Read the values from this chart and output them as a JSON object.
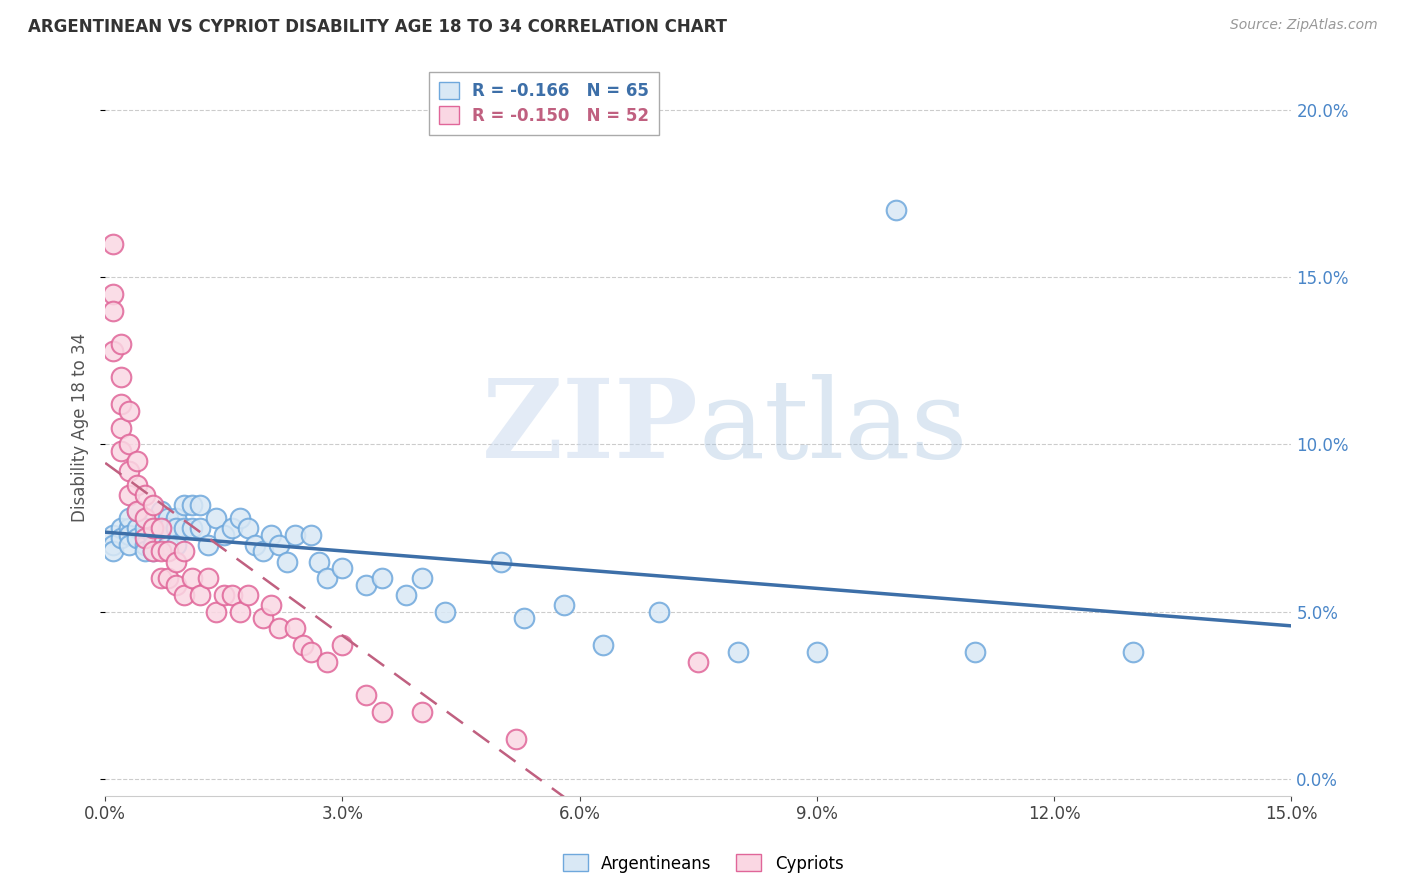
{
  "title": "ARGENTINEAN VS CYPRIOT DISABILITY AGE 18 TO 34 CORRELATION CHART",
  "source": "Source: ZipAtlas.com",
  "ylabel": "Disability Age 18 to 34",
  "xlim": [
    0.0,
    0.15
  ],
  "ylim": [
    -0.005,
    0.215
  ],
  "xticks": [
    0.0,
    0.03,
    0.06,
    0.09,
    0.12,
    0.15
  ],
  "yticks_right": [
    0.0,
    0.05,
    0.1,
    0.15,
    0.2
  ],
  "argentinean_R": -0.166,
  "argentinean_N": 65,
  "cypriot_R": -0.15,
  "cypriot_N": 52,
  "blue_color": "#6fa8dc",
  "pink_color": "#e06699",
  "blue_fill": "#d9e8f5",
  "pink_fill": "#fad7e3",
  "blue_line_color": "#3d6fa8",
  "pink_line_color": "#c06080",
  "watermark_color": "#d0dff0",
  "background_color": "#ffffff",
  "grid_color": "#cccccc",
  "argentinean_x": [
    0.001,
    0.001,
    0.001,
    0.002,
    0.002,
    0.003,
    0.003,
    0.003,
    0.003,
    0.004,
    0.004,
    0.004,
    0.005,
    0.005,
    0.005,
    0.005,
    0.006,
    0.006,
    0.006,
    0.007,
    0.007,
    0.007,
    0.008,
    0.008,
    0.008,
    0.009,
    0.009,
    0.009,
    0.01,
    0.01,
    0.011,
    0.011,
    0.012,
    0.012,
    0.013,
    0.014,
    0.015,
    0.016,
    0.017,
    0.018,
    0.019,
    0.02,
    0.021,
    0.022,
    0.023,
    0.024,
    0.026,
    0.027,
    0.028,
    0.03,
    0.033,
    0.035,
    0.038,
    0.04,
    0.043,
    0.05,
    0.053,
    0.058,
    0.063,
    0.07,
    0.08,
    0.09,
    0.1,
    0.11,
    0.13
  ],
  "argentinean_y": [
    0.073,
    0.07,
    0.068,
    0.075,
    0.072,
    0.075,
    0.078,
    0.073,
    0.07,
    0.075,
    0.08,
    0.072,
    0.073,
    0.07,
    0.068,
    0.075,
    0.073,
    0.07,
    0.068,
    0.08,
    0.075,
    0.07,
    0.078,
    0.075,
    0.07,
    0.078,
    0.075,
    0.07,
    0.082,
    0.075,
    0.082,
    0.075,
    0.082,
    0.075,
    0.07,
    0.078,
    0.073,
    0.075,
    0.078,
    0.075,
    0.07,
    0.068,
    0.073,
    0.07,
    0.065,
    0.073,
    0.073,
    0.065,
    0.06,
    0.063,
    0.058,
    0.06,
    0.055,
    0.06,
    0.05,
    0.065,
    0.048,
    0.052,
    0.04,
    0.05,
    0.038,
    0.038,
    0.17,
    0.038,
    0.038
  ],
  "cypriot_x": [
    0.001,
    0.001,
    0.001,
    0.001,
    0.002,
    0.002,
    0.002,
    0.002,
    0.002,
    0.003,
    0.003,
    0.003,
    0.003,
    0.004,
    0.004,
    0.004,
    0.005,
    0.005,
    0.005,
    0.006,
    0.006,
    0.006,
    0.007,
    0.007,
    0.007,
    0.008,
    0.008,
    0.009,
    0.009,
    0.01,
    0.01,
    0.011,
    0.012,
    0.013,
    0.014,
    0.015,
    0.016,
    0.017,
    0.018,
    0.02,
    0.021,
    0.022,
    0.024,
    0.025,
    0.026,
    0.028,
    0.03,
    0.033,
    0.035,
    0.04,
    0.052,
    0.075
  ],
  "cypriot_y": [
    0.16,
    0.145,
    0.14,
    0.128,
    0.13,
    0.12,
    0.112,
    0.105,
    0.098,
    0.11,
    0.1,
    0.092,
    0.085,
    0.095,
    0.088,
    0.08,
    0.085,
    0.078,
    0.072,
    0.082,
    0.075,
    0.068,
    0.075,
    0.068,
    0.06,
    0.068,
    0.06,
    0.065,
    0.058,
    0.068,
    0.055,
    0.06,
    0.055,
    0.06,
    0.05,
    0.055,
    0.055,
    0.05,
    0.055,
    0.048,
    0.052,
    0.045,
    0.045,
    0.04,
    0.038,
    0.035,
    0.04,
    0.025,
    0.02,
    0.02,
    0.012,
    0.035
  ]
}
